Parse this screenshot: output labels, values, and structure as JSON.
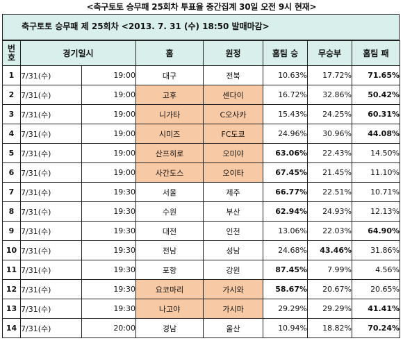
{
  "page_title": "<축구토토 승무패 25회차 투표율 중간집계 30일 오전 9시 현재>",
  "banner": "축구토토 승무패 제 25회차 <2013. 7. 31 (수) 18:50 발매마감>",
  "headers": {
    "num_line1": "번",
    "num_line2": "호",
    "match_time": "경기일시",
    "home": "홈",
    "away": "원정",
    "home_win": "홈팀 승",
    "draw": "무승부",
    "home_loss": "홈팀 패"
  },
  "rows": [
    {
      "no": "1",
      "date": "7/31(수)",
      "time": "19:00",
      "home": "대구",
      "away": "전북",
      "win": "10.63%",
      "draw": "17.72%",
      "loss": "71.65%",
      "bold": "loss",
      "shaded": false
    },
    {
      "no": "2",
      "date": "7/31(수)",
      "time": "19:00",
      "home": "고후",
      "away": "센다이",
      "win": "16.72%",
      "draw": "32.86%",
      "loss": "50.42%",
      "bold": "loss",
      "shaded": true
    },
    {
      "no": "3",
      "date": "7/31(수)",
      "time": "19:00",
      "home": "니가타",
      "away": "C오사카",
      "win": "15.43%",
      "draw": "24.25%",
      "loss": "60.31%",
      "bold": "loss",
      "shaded": true
    },
    {
      "no": "4",
      "date": "7/31(수)",
      "time": "19:00",
      "home": "시미즈",
      "away": "FC도쿄",
      "win": "24.96%",
      "draw": "30.96%",
      "loss": "44.08%",
      "bold": "loss",
      "shaded": true
    },
    {
      "no": "5",
      "date": "7/31(수)",
      "time": "19:00",
      "home": "산프히로",
      "away": "오미야",
      "win": "63.06%",
      "draw": "22.43%",
      "loss": "14.50%",
      "bold": "win",
      "shaded": true
    },
    {
      "no": "6",
      "date": "7/31(수)",
      "time": "19:00",
      "home": "사간도스",
      "away": "오이타",
      "win": "67.45%",
      "draw": "21.45%",
      "loss": "11.10%",
      "bold": "win",
      "shaded": true
    },
    {
      "no": "7",
      "date": "7/31(수)",
      "time": "19:30",
      "home": "서울",
      "away": "제주",
      "win": "66.77%",
      "draw": "22.51%",
      "loss": "10.71%",
      "bold": "win",
      "shaded": false
    },
    {
      "no": "8",
      "date": "7/31(수)",
      "time": "19:30",
      "home": "수원",
      "away": "부산",
      "win": "62.94%",
      "draw": "24.93%",
      "loss": "12.13%",
      "bold": "win",
      "shaded": false
    },
    {
      "no": "9",
      "date": "7/31(수)",
      "time": "19:30",
      "home": "대전",
      "away": "인천",
      "win": "13.06%",
      "draw": "22.03%",
      "loss": "64.90%",
      "bold": "loss",
      "shaded": false
    },
    {
      "no": "10",
      "date": "7/31(수)",
      "time": "19:30",
      "home": "전남",
      "away": "성남",
      "win": "24.68%",
      "draw": "43.46%",
      "loss": "31.86%",
      "bold": "draw",
      "shaded": false
    },
    {
      "no": "11",
      "date": "7/31(수)",
      "time": "19:30",
      "home": "포항",
      "away": "강원",
      "win": "87.45%",
      "draw": "7.99%",
      "loss": "4.56%",
      "bold": "win",
      "shaded": false
    },
    {
      "no": "12",
      "date": "7/31(수)",
      "time": "19:30",
      "home": "요코마리",
      "away": "가시와",
      "win": "58.67%",
      "draw": "20.67%",
      "loss": "20.65%",
      "bold": "win",
      "shaded": true
    },
    {
      "no": "13",
      "date": "7/31(수)",
      "time": "19:30",
      "home": "나고야",
      "away": "가시마",
      "win": "29.29%",
      "draw": "29.29%",
      "loss": "41.41%",
      "bold": "loss",
      "shaded": true
    },
    {
      "no": "14",
      "date": "7/31(수)",
      "time": "20:00",
      "home": "경남",
      "away": "울산",
      "win": "10.94%",
      "draw": "18.82%",
      "loss": "70.24%",
      "bold": "loss",
      "shaded": false
    }
  ],
  "colors": {
    "header_bg": "#d9efec",
    "shade_bg": "#f8c9a5",
    "border": "#222222"
  }
}
